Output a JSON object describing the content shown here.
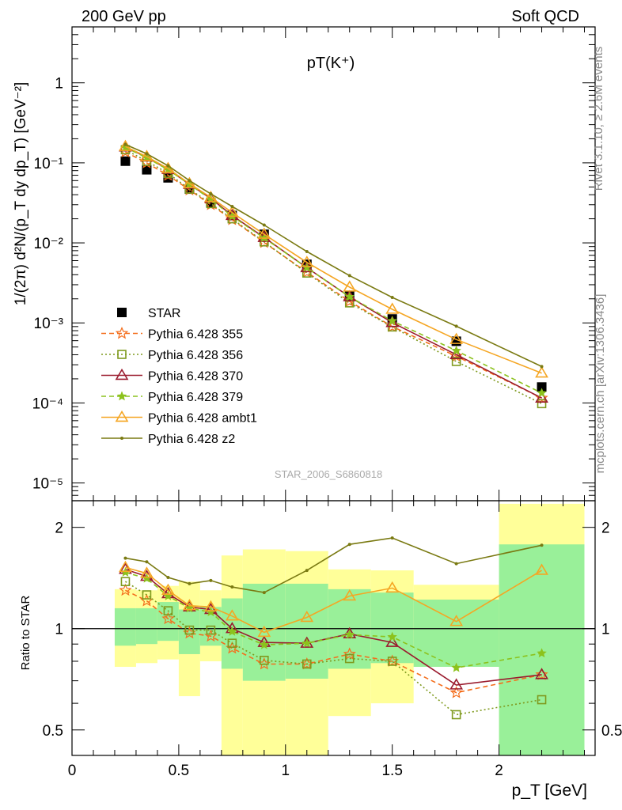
{
  "header": {
    "left": "200 GeV pp",
    "right": "Soft QCD"
  },
  "side_labels": {
    "rivet": "Rivet 3.1.10, ≥ 2.6M events",
    "mcplots": "mcplots.cern.ch [arXiv:1306.3436]"
  },
  "chart_data": [
    {
      "type": "scatter",
      "title": "pT(K⁺)",
      "watermark": "STAR_2006_S6860818",
      "ylabel": "1/(2π) d²N/(p_T dy dp_T) [GeV⁻²]",
      "yscale": "log",
      "ylim": [
        6e-06,
        5
      ],
      "xlim": [
        0,
        2.45
      ],
      "y_ticks": [
        {
          "value": 1,
          "label": "1"
        },
        {
          "value": 0.1,
          "label": "10⁻¹"
        },
        {
          "value": 0.01,
          "label": "10⁻²"
        },
        {
          "value": 0.001,
          "label": "10⁻³"
        },
        {
          "value": 0.0001,
          "label": "10⁻⁴"
        },
        {
          "value": 1e-05,
          "label": "10⁻⁵"
        }
      ],
      "legend_position": "lower-left",
      "x": [
        0.25,
        0.35,
        0.45,
        0.55,
        0.65,
        0.75,
        0.9,
        1.1,
        1.3,
        1.5,
        1.8,
        2.2
      ],
      "series": [
        {
          "name": "STAR",
          "color": "#000000",
          "marker": "square",
          "values": [
            0.105,
            0.082,
            0.065,
            0.047,
            0.032,
            0.022,
            0.0128,
            0.0054,
            0.0022,
            0.00112,
            0.00059,
            0.000158
          ]
        },
        {
          "name": "Pythia 6.428 355",
          "color": "#f46e1c",
          "marker": "star",
          "dash": "6,4",
          "values": [
            0.137,
            0.1,
            0.07,
            0.046,
            0.03,
            0.0195,
            0.0101,
            0.0043,
            0.00186,
            0.0009,
            0.000384,
            0.000115
          ]
        },
        {
          "name": "Pythia 6.428 356",
          "color": "#7f9a1e",
          "marker": "open-square",
          "dash": "2,3",
          "values": [
            0.146,
            0.105,
            0.074,
            0.047,
            0.031,
            0.02,
            0.0103,
            0.0042,
            0.00178,
            0.00089,
            0.00033,
            9.8e-05
          ]
        },
        {
          "name": "Pythia 6.428 370",
          "color": "#9a1b2e",
          "marker": "open-triangle",
          "values": [
            0.158,
            0.118,
            0.083,
            0.054,
            0.036,
            0.022,
            0.0117,
            0.0049,
            0.00212,
            0.00101,
            0.000402,
            0.000115
          ]
        },
        {
          "name": "Pythia 6.428 379",
          "color": "#8cc21d",
          "marker": "small-star",
          "dash": "6,4",
          "values": [
            0.155,
            0.116,
            0.082,
            0.054,
            0.035,
            0.0215,
            0.0115,
            0.0049,
            0.00212,
            0.00106,
            0.00045,
            0.000133
          ]
        },
        {
          "name": "Pythia 6.428 ambt1",
          "color": "#f5a623",
          "marker": "open-triangle",
          "values": [
            0.16,
            0.12,
            0.085,
            0.055,
            0.037,
            0.024,
            0.0128,
            0.0057,
            0.0028,
            0.00148,
            0.00062,
            0.000236
          ]
        },
        {
          "name": "Pythia 6.428 z2",
          "color": "#7a7a12",
          "marker": "dot",
          "values": [
            0.17,
            0.13,
            0.092,
            0.06,
            0.041,
            0.0285,
            0.0167,
            0.0078,
            0.0039,
            0.00208,
            0.00091,
            0.000285
          ]
        }
      ]
    },
    {
      "type": "line",
      "ylabel": "Ratio to STAR",
      "xlabel": "p_T [GeV]",
      "yscale": "log",
      "ylim": [
        0.42,
        2.4
      ],
      "xlim": [
        0,
        2.45
      ],
      "x_ticks": [
        {
          "value": 0,
          "label": "0"
        },
        {
          "value": 0.5,
          "label": "0.5"
        },
        {
          "value": 1,
          "label": "1"
        },
        {
          "value": 1.5,
          "label": "1.5"
        },
        {
          "value": 2,
          "label": "2"
        }
      ],
      "y_ticks": [
        {
          "value": 0.5,
          "label": "0.5"
        },
        {
          "value": 1,
          "label": "1"
        },
        {
          "value": 2,
          "label": "2"
        }
      ],
      "reference_line": 1,
      "bands": [
        {
          "x0": 0.2,
          "x1": 0.3,
          "stat_lo": 0.89,
          "stat_hi": 1.15,
          "tot_lo": 0.77,
          "tot_hi": 1.31
        },
        {
          "x0": 0.3,
          "x1": 0.4,
          "stat_lo": 0.9,
          "stat_hi": 1.15,
          "tot_lo": 0.79,
          "tot_hi": 1.3
        },
        {
          "x0": 0.4,
          "x1": 0.5,
          "stat_lo": 0.92,
          "stat_hi": 1.2,
          "tot_lo": 0.81,
          "tot_hi": 1.34
        },
        {
          "x0": 0.5,
          "x1": 0.6,
          "stat_lo": 0.84,
          "stat_hi": 1.14,
          "tot_lo": 0.63,
          "tot_hi": 1.38
        },
        {
          "x0": 0.6,
          "x1": 0.7,
          "stat_lo": 0.89,
          "stat_hi": 1.16,
          "tot_lo": 0.8,
          "tot_hi": 1.3
        },
        {
          "x0": 0.7,
          "x1": 0.8,
          "stat_lo": 0.76,
          "stat_hi": 1.23,
          "tot_lo": 0.42,
          "tot_hi": 1.65
        },
        {
          "x0": 0.8,
          "x1": 1.0,
          "stat_lo": 0.7,
          "stat_hi": 1.36,
          "tot_lo": 0.42,
          "tot_hi": 1.72
        },
        {
          "x0": 1.0,
          "x1": 1.2,
          "stat_lo": 0.71,
          "stat_hi": 1.36,
          "tot_lo": 0.42,
          "tot_hi": 1.7
        },
        {
          "x0": 1.2,
          "x1": 1.4,
          "stat_lo": 0.76,
          "stat_hi": 1.31,
          "tot_lo": 0.55,
          "tot_hi": 1.5
        },
        {
          "x0": 1.4,
          "x1": 1.6,
          "stat_lo": 0.79,
          "stat_hi": 1.28,
          "tot_lo": 0.6,
          "tot_hi": 1.49
        },
        {
          "x0": 1.6,
          "x1": 2.0,
          "stat_lo": 0.77,
          "stat_hi": 1.22,
          "tot_lo": 0.77,
          "tot_hi": 1.35
        },
        {
          "x0": 2.0,
          "x1": 2.4,
          "stat_lo": 0.42,
          "stat_hi": 1.78,
          "tot_lo": 0.42,
          "tot_hi": 2.35
        }
      ],
      "series": [
        {
          "name": "Pythia 6.428 355",
          "values": [
            1.3,
            1.21,
            1.07,
            0.97,
            0.95,
            0.875,
            0.785,
            0.785,
            0.84,
            0.8,
            0.645,
            0.73
          ]
        },
        {
          "name": "Pythia 6.428 356",
          "values": [
            1.38,
            1.26,
            1.13,
            0.99,
            0.99,
            0.905,
            0.805,
            0.785,
            0.815,
            0.8,
            0.555,
            0.615
          ]
        },
        {
          "name": "Pythia 6.428 370",
          "values": [
            1.5,
            1.43,
            1.27,
            1.16,
            1.14,
            1.0,
            0.91,
            0.905,
            0.965,
            0.91,
            0.68,
            0.73
          ]
        },
        {
          "name": "Pythia 6.428 379",
          "values": [
            1.47,
            1.41,
            1.25,
            1.15,
            1.12,
            0.98,
            0.895,
            0.905,
            0.96,
            0.945,
            0.765,
            0.845
          ]
        },
        {
          "name": "Pythia 6.428 ambt1",
          "values": [
            1.52,
            1.46,
            1.3,
            1.17,
            1.16,
            1.09,
            0.975,
            1.08,
            1.25,
            1.32,
            1.05,
            1.49
          ]
        },
        {
          "name": "Pythia 6.428 z2",
          "values": [
            1.62,
            1.58,
            1.42,
            1.36,
            1.39,
            1.33,
            1.28,
            1.49,
            1.78,
            1.86,
            1.56,
            1.77
          ]
        }
      ]
    }
  ]
}
